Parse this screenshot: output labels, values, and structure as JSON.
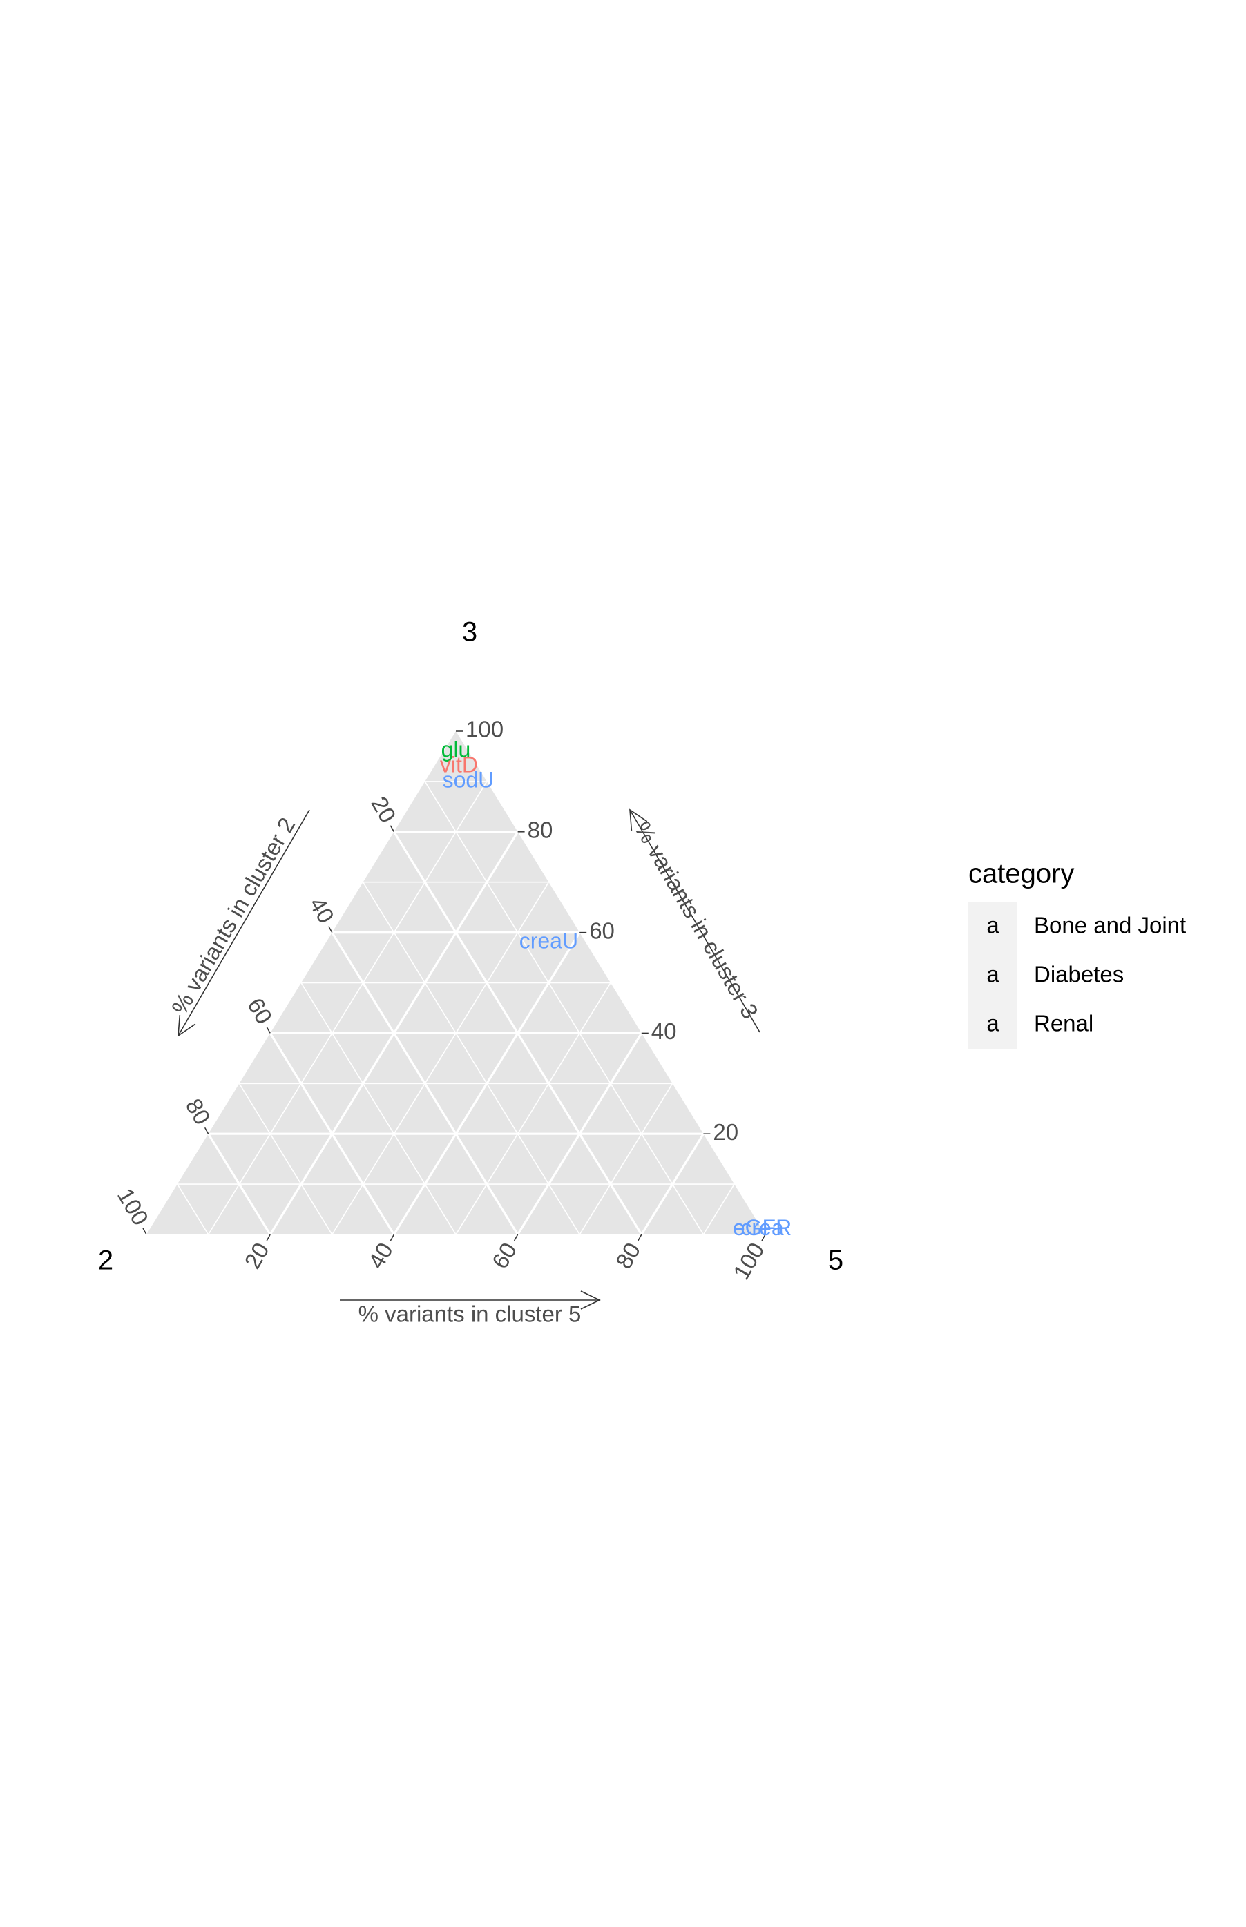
{
  "chart_data": {
    "type": "ternary",
    "vertices": {
      "top": "3",
      "left": "2",
      "right": "5"
    },
    "axis_titles": {
      "left": "% variants in cluster 2",
      "right": "% variants in cluster 3",
      "bottom": "% variants in cluster 5"
    },
    "ticks": [
      0,
      20,
      40,
      60,
      80,
      100
    ],
    "tick_labels": [
      "20",
      "40",
      "60",
      "80",
      "100"
    ],
    "grid_minor_step": 10,
    "background": "#e5e5e5",
    "legend": {
      "title": "category",
      "placement": "right",
      "key_glyph": "a",
      "entries": [
        {
          "label": "Bone and Joint",
          "color": "#F8766D"
        },
        {
          "label": "Diabetes",
          "color": "#00BA38"
        },
        {
          "label": "Renal",
          "color": "#619CFF"
        }
      ]
    },
    "points": [
      {
        "label": "glu",
        "category": "Diabetes",
        "c2": 2,
        "c3": 96,
        "c5": 2
      },
      {
        "label": "vitD",
        "category": "Bone and Joint",
        "c2": 3,
        "c3": 93,
        "c5": 4
      },
      {
        "label": "sodU",
        "category": "Renal",
        "c2": 3,
        "c3": 90,
        "c5": 7
      },
      {
        "label": "creaU",
        "category": "Renal",
        "c2": 6,
        "c3": 58,
        "c5": 36
      },
      {
        "label": "eGFR",
        "category": "Renal",
        "c2": 0,
        "c3": 1,
        "c5": 99
      },
      {
        "label": "crea",
        "category": "Renal",
        "c2": 0,
        "c3": 1,
        "c5": 99
      }
    ]
  }
}
